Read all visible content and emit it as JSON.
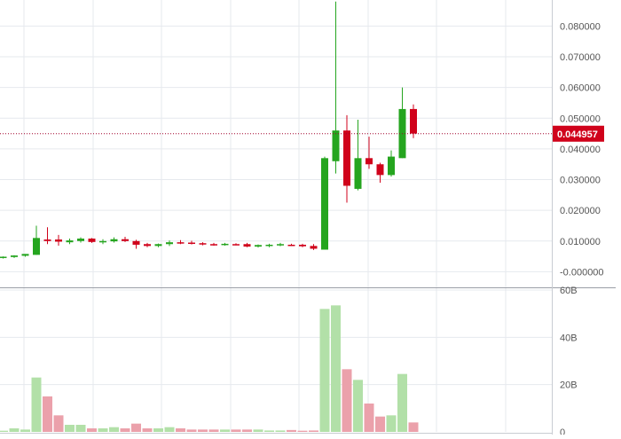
{
  "colors": {
    "up": "#25a51f",
    "down": "#d0021b",
    "up_volume": "#b2e0a8",
    "down_volume": "#eba1ab",
    "grid": "#e6e9ee",
    "axis_text": "#555555",
    "price_line": "#a0002a",
    "price_label_bg": "#d0021b",
    "price_label_text": "#ffffff"
  },
  "price_tag": {
    "value": 0.044957,
    "text": "0.044957"
  },
  "chart_data": [
    {
      "type": "candlestick",
      "title": "",
      "xlabel": "",
      "ylabel": "",
      "ylim": [
        -0.0045,
        0.0885
      ],
      "y_ticks": [
        {
          "value": 0.08,
          "label": "0.080000"
        },
        {
          "value": 0.07,
          "label": "0.070000"
        },
        {
          "value": 0.06,
          "label": "0.060000"
        },
        {
          "value": 0.05,
          "label": "0.050000"
        },
        {
          "value": 0.04,
          "label": "0.040000"
        },
        {
          "value": 0.03,
          "label": "0.030000"
        },
        {
          "value": 0.02,
          "label": "0.020000"
        },
        {
          "value": 0.01,
          "label": "0.010000"
        },
        {
          "value": 0.0,
          "label": "-0.000000"
        }
      ],
      "grid": true,
      "candles": [
        {
          "o": 0.0046,
          "h": 0.005,
          "l": 0.0043,
          "c": 0.0049
        },
        {
          "o": 0.0048,
          "h": 0.0054,
          "l": 0.0045,
          "c": 0.0053
        },
        {
          "o": 0.0052,
          "h": 0.0058,
          "l": 0.0049,
          "c": 0.0058
        },
        {
          "o": 0.0055,
          "h": 0.015,
          "l": 0.0055,
          "c": 0.011
        },
        {
          "o": 0.0105,
          "h": 0.0145,
          "l": 0.009,
          "c": 0.01
        },
        {
          "o": 0.0105,
          "h": 0.012,
          "l": 0.0085,
          "c": 0.0098
        },
        {
          "o": 0.0096,
          "h": 0.0108,
          "l": 0.009,
          "c": 0.0102
        },
        {
          "o": 0.01,
          "h": 0.0112,
          "l": 0.0095,
          "c": 0.0108
        },
        {
          "o": 0.0108,
          "h": 0.011,
          "l": 0.0094,
          "c": 0.0097
        },
        {
          "o": 0.0098,
          "h": 0.0106,
          "l": 0.009,
          "c": 0.01
        },
        {
          "o": 0.0099,
          "h": 0.0112,
          "l": 0.0095,
          "c": 0.0106
        },
        {
          "o": 0.0106,
          "h": 0.0114,
          "l": 0.0097,
          "c": 0.01
        },
        {
          "o": 0.01,
          "h": 0.0104,
          "l": 0.0075,
          "c": 0.0088
        },
        {
          "o": 0.009,
          "h": 0.0094,
          "l": 0.008,
          "c": 0.0084
        },
        {
          "o": 0.0084,
          "h": 0.0092,
          "l": 0.008,
          "c": 0.009
        },
        {
          "o": 0.009,
          "h": 0.0102,
          "l": 0.0084,
          "c": 0.0096
        },
        {
          "o": 0.0096,
          "h": 0.0103,
          "l": 0.009,
          "c": 0.0094
        },
        {
          "o": 0.0095,
          "h": 0.0101,
          "l": 0.0089,
          "c": 0.0092
        },
        {
          "o": 0.0093,
          "h": 0.0096,
          "l": 0.0086,
          "c": 0.009
        },
        {
          "o": 0.009,
          "h": 0.0094,
          "l": 0.0085,
          "c": 0.0089
        },
        {
          "o": 0.0089,
          "h": 0.0094,
          "l": 0.0085,
          "c": 0.0091
        },
        {
          "o": 0.009,
          "h": 0.0093,
          "l": 0.0086,
          "c": 0.0088
        },
        {
          "o": 0.009,
          "h": 0.0094,
          "l": 0.008,
          "c": 0.0082
        },
        {
          "o": 0.0082,
          "h": 0.0089,
          "l": 0.0079,
          "c": 0.0087
        },
        {
          "o": 0.0085,
          "h": 0.0091,
          "l": 0.008,
          "c": 0.0088
        },
        {
          "o": 0.0088,
          "h": 0.0094,
          "l": 0.0083,
          "c": 0.009
        },
        {
          "o": 0.0088,
          "h": 0.0091,
          "l": 0.0084,
          "c": 0.0086
        },
        {
          "o": 0.0088,
          "h": 0.0091,
          "l": 0.008,
          "c": 0.0083
        },
        {
          "o": 0.0084,
          "h": 0.009,
          "l": 0.0071,
          "c": 0.0075
        },
        {
          "o": 0.0072,
          "h": 0.0375,
          "l": 0.0072,
          "c": 0.037
        },
        {
          "o": 0.036,
          "h": 0.088,
          "l": 0.032,
          "c": 0.046
        },
        {
          "o": 0.046,
          "h": 0.051,
          "l": 0.0225,
          "c": 0.028
        },
        {
          "o": 0.027,
          "h": 0.0495,
          "l": 0.0265,
          "c": 0.037
        },
        {
          "o": 0.037,
          "h": 0.044,
          "l": 0.0335,
          "c": 0.035
        },
        {
          "o": 0.035,
          "h": 0.0355,
          "l": 0.029,
          "c": 0.0315
        },
        {
          "o": 0.0315,
          "h": 0.0395,
          "l": 0.031,
          "c": 0.0375
        },
        {
          "o": 0.037,
          "h": 0.06,
          "l": 0.037,
          "c": 0.053
        },
        {
          "o": 0.053,
          "h": 0.0545,
          "l": 0.0435,
          "c": 0.045
        }
      ]
    },
    {
      "type": "bar",
      "title": "",
      "xlabel": "",
      "ylabel": "",
      "ylim": [
        0,
        60
      ],
      "y_ticks": [
        {
          "value": 60,
          "label": "60B"
        },
        {
          "value": 40,
          "label": "40B"
        },
        {
          "value": 20,
          "label": "20B"
        },
        {
          "value": 0,
          "label": "0"
        }
      ],
      "grid": true,
      "volumes": [
        0.5,
        1.5,
        1.0,
        23,
        15,
        7,
        3,
        3,
        1.5,
        1.5,
        2,
        1.5,
        3.5,
        1.5,
        1.5,
        2,
        1.5,
        1,
        1,
        1,
        1,
        1,
        1,
        1,
        0.6,
        0.6,
        0.8,
        0.5,
        0.6,
        52,
        53.5,
        26.5,
        22,
        12,
        6.5,
        7,
        24.5,
        4
      ]
    }
  ]
}
